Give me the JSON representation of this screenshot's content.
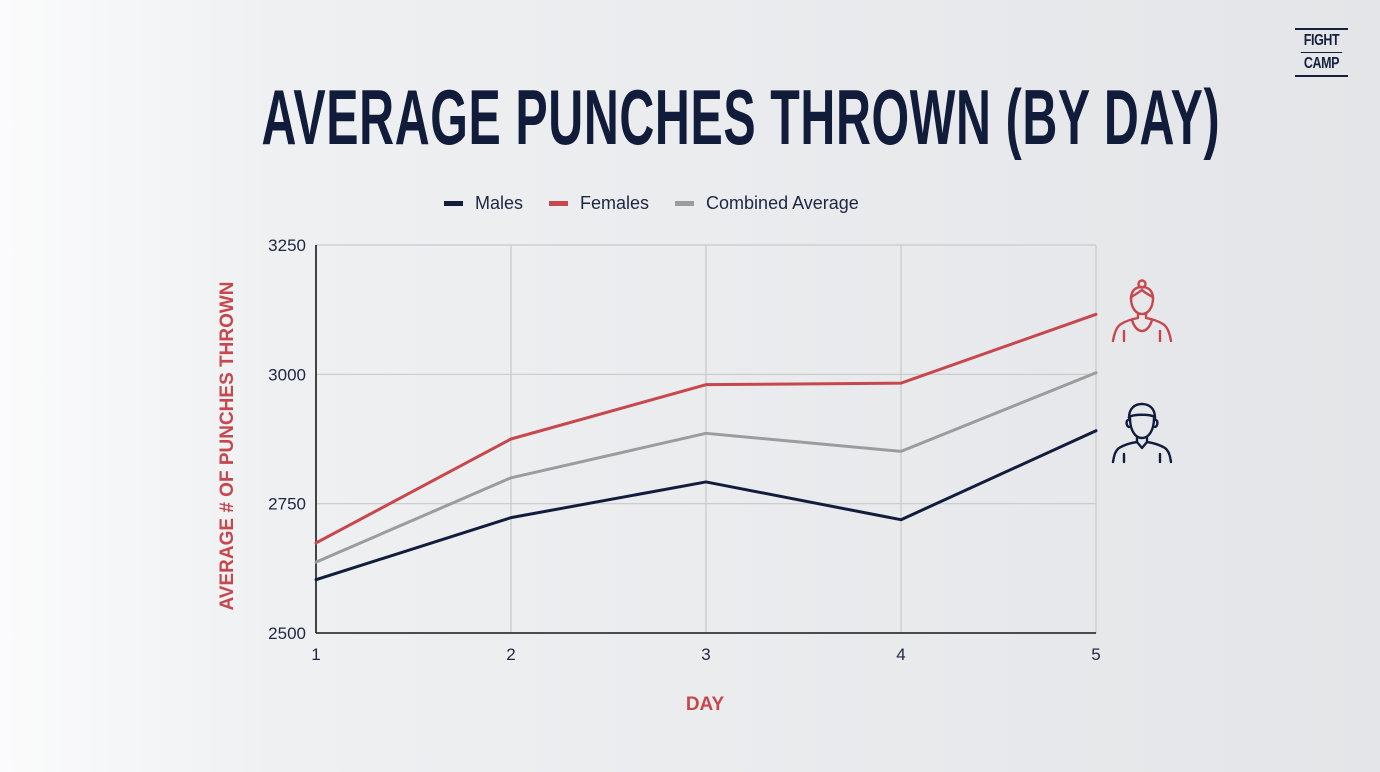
{
  "brand": {
    "logo_line1": "FIGHT",
    "logo_line2": "CAMP"
  },
  "chart_data": {
    "type": "line",
    "title": "AVERAGE PUNCHES THROWN (BY DAY)",
    "xlabel": "DAY",
    "ylabel": "AVERAGE # OF PUNCHES THROWN",
    "x": [
      1,
      2,
      3,
      4,
      5
    ],
    "xlim": [
      1,
      5
    ],
    "ylim": [
      2500,
      3250
    ],
    "yticks": [
      2500,
      2750,
      3000,
      3250
    ],
    "grid": true,
    "legend_position": "top",
    "series": [
      {
        "name": "Males",
        "color": "#121d3d",
        "values": [
          2603,
          2723,
          2792,
          2719,
          2891
        ]
      },
      {
        "name": "Females",
        "color": "#c7474d",
        "values": [
          2674,
          2875,
          2980,
          2983,
          3116
        ]
      },
      {
        "name": "Combined Average",
        "color": "#9c9c9c",
        "values": [
          2637,
          2800,
          2886,
          2851,
          3003
        ]
      }
    ],
    "annotations": [
      {
        "icon": "female-boxer-icon",
        "series": "Females",
        "color": "#c7474d"
      },
      {
        "icon": "male-boxer-icon",
        "series": "Males",
        "color": "#121d3d"
      }
    ]
  }
}
